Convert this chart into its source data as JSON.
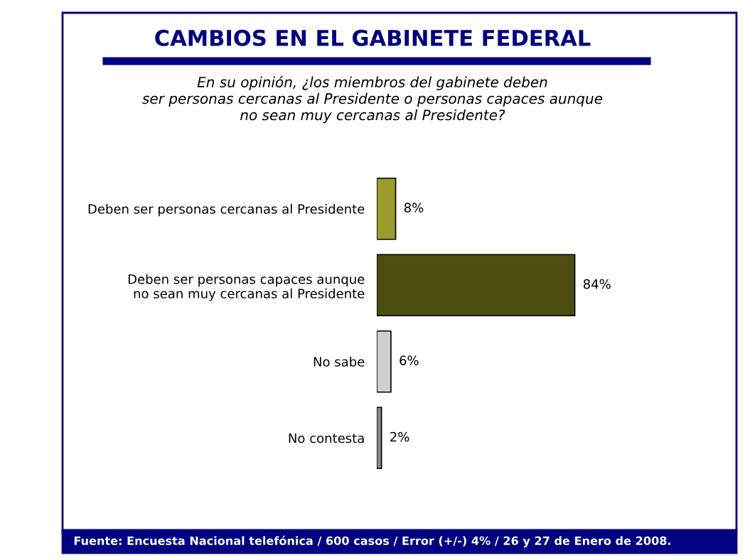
{
  "chart_data": {
    "type": "bar",
    "orientation": "horizontal",
    "title": "CAMBIOS EN EL GABINETE FEDERAL",
    "subtitle": "En su opinión, ¿los miembros del gabinete deben\nser personas cercanas al Presidente o personas capaces aunque\nno sean muy cercanas al Presidente?",
    "categories": [
      "Deben ser personas cercanas al Presidente",
      "Deben ser personas capaces aunque\nno sean muy cercanas al Presidente",
      "No sabe",
      "No contesta"
    ],
    "values": [
      8,
      84,
      6,
      2
    ],
    "colors": [
      "#9c9c2c",
      "#4d4d10",
      "#cfcfcf",
      "#8a8a8a"
    ],
    "value_labels": [
      "8%",
      "84%",
      "6%",
      "2%"
    ],
    "annotations": [
      "Fuente: Encuesta Nacional telefónica / 600 casos / Error (+/-) 4% / 26 y 27 de Enero de 2008."
    ]
  }
}
